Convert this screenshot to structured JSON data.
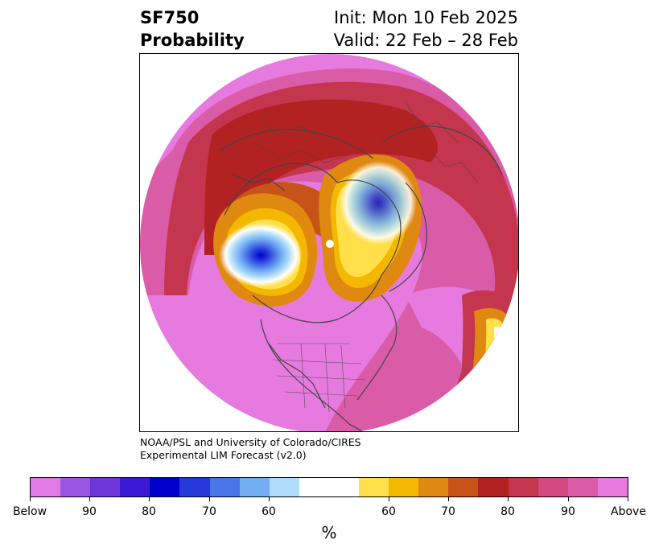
{
  "title": {
    "left_line1": "SF750",
    "left_line2": "Probability",
    "right_line1": "Init: Mon 10 Feb 2025",
    "right_line2": "Valid: 22 Feb – 28 Feb"
  },
  "credit": {
    "line1": "NOAA/PSL and University of Colorado/CIRES",
    "line2": "Experimental LIM Forecast (v2.0)"
  },
  "colorbar": {
    "unit_label": "%",
    "colors": [
      "#e17ae6",
      "#9b55e3",
      "#6e35db",
      "#3a19d6",
      "#0000cc",
      "#2538da",
      "#4a75e8",
      "#72aef1",
      "#aedcfa",
      "#ffffff",
      "#ffe04a",
      "#f5b800",
      "#e08910",
      "#c75318",
      "#b22222",
      "#c4354e",
      "#d2487f",
      "#da5ca8",
      "#e67adf"
    ],
    "tick_labels": [
      "Below",
      "90",
      "80",
      "70",
      "60",
      "60",
      "70",
      "80",
      "90",
      "Above"
    ]
  },
  "map": {
    "projection": "north-polar-stereographic",
    "colors": {
      "above_high": "#e67adf",
      "above_mid": "#da5ca8",
      "above_low": "#c4354e",
      "warm_80": "#b22222",
      "warm_70": "#c75318",
      "warm_65": "#e08910",
      "warm_60": "#f5b800",
      "warm_55": "#ffe04a",
      "neutral": "#ffffff",
      "cool_60": "#aedcfa",
      "cool_65": "#72aef1",
      "cool_70": "#4a75e8",
      "cool_75": "#2538da",
      "cool_80": "#0000cc"
    }
  }
}
